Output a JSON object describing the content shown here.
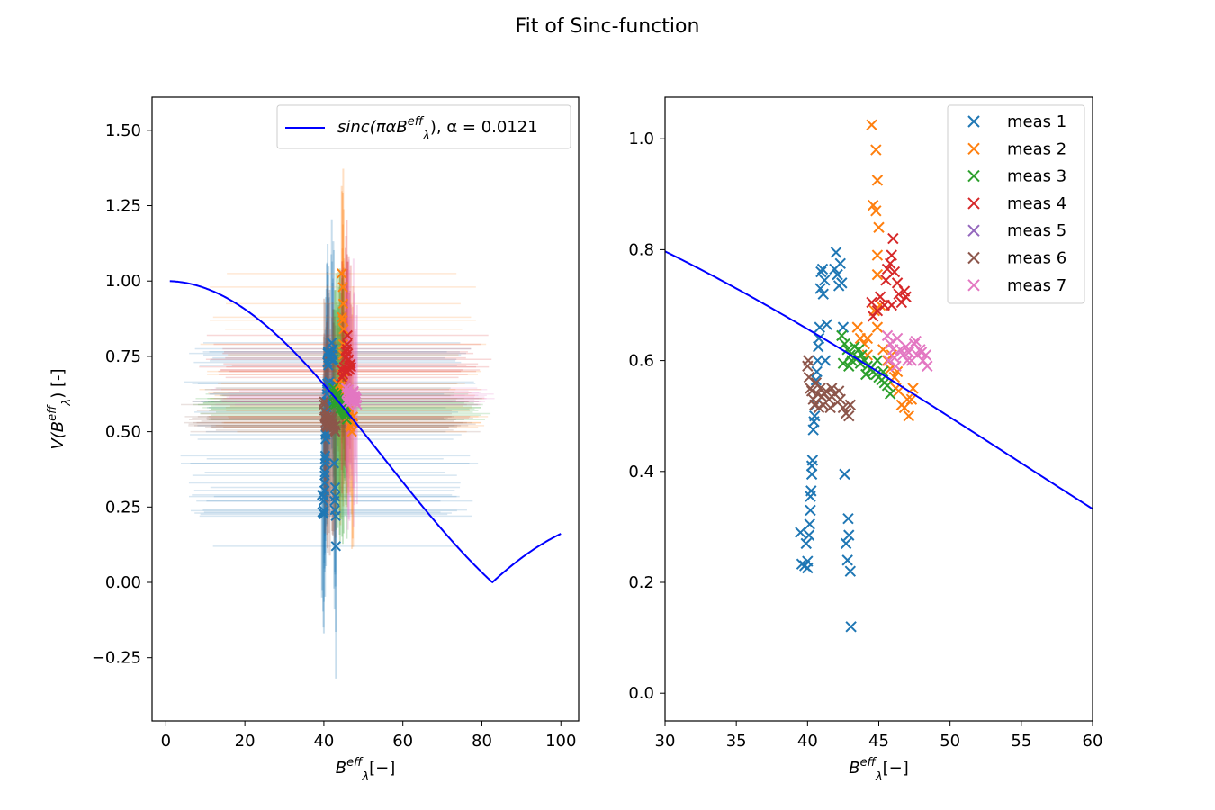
{
  "figure_title": "Fit of Sinc-function",
  "chart_data": [
    {
      "type": "line",
      "panel": "left",
      "xlabel_main": "B",
      "xlabel_sup": "eff",
      "xlabel_sub": "λ",
      "xlabel_tail": "[−]",
      "ylabel_pre": "V(B",
      "ylabel_sup": "eff",
      "ylabel_sub": "λ",
      "ylabel_tail": ") [-]",
      "xlim": [
        -3.5,
        104.5
      ],
      "ylim": [
        -0.46,
        1.61
      ],
      "xticks": [
        "0",
        "20",
        "40",
        "60",
        "80",
        "100"
      ],
      "xtick_values": [
        0,
        20,
        40,
        60,
        80,
        100
      ],
      "yticks": [
        "−0.25",
        "0.00",
        "0.25",
        "0.50",
        "0.75",
        "1.00",
        "1.25",
        "1.50"
      ],
      "ytick_values": [
        -0.25,
        0,
        0.25,
        0.5,
        0.75,
        1.0,
        1.25,
        1.5
      ],
      "legend": {
        "placement": "upper-right",
        "fit_label_main": "sinc(παB",
        "fit_label_sup": "eff",
        "fit_label_sub": "λ",
        "fit_label_tail": "), α = 0.0121"
      },
      "fit": {
        "alpha": 0.0121,
        "x_range": [
          1,
          100
        ],
        "color": "#0000ff",
        "abs": true
      },
      "errorbars": "per-point horizontal (≈±32) and vertical (≈±0.2–0.45) translucent error bars in series colors"
    },
    {
      "type": "scatter",
      "panel": "right",
      "xlabel_main": "B",
      "xlabel_sup": "eff",
      "xlabel_sub": "λ",
      "xlabel_tail": "[−]",
      "xlim": [
        30,
        60
      ],
      "ylim": [
        -0.05,
        1.075
      ],
      "xticks": [
        "30",
        "35",
        "40",
        "45",
        "50",
        "55",
        "60"
      ],
      "xtick_values": [
        30,
        35,
        40,
        45,
        50,
        55,
        60
      ],
      "yticks": [
        "0.0",
        "0.2",
        "0.4",
        "0.6",
        "0.8",
        "1.0"
      ],
      "ytick_values": [
        0,
        0.2,
        0.4,
        0.6,
        0.8,
        1.0
      ],
      "legend": {
        "placement": "upper-right"
      },
      "fit": {
        "alpha": 0.0121,
        "x_range": [
          30,
          60
        ],
        "color": "#0000ff"
      },
      "series": [
        {
          "name": "meas 1",
          "color": "#1f77b4",
          "points": [
            [
              39.5,
              0.29
            ],
            [
              39.6,
              0.233
            ],
            [
              39.8,
              0.23
            ],
            [
              39.9,
              0.27
            ],
            [
              40.0,
              0.238
            ],
            [
              40.0,
              0.226
            ],
            [
              40.1,
              0.285
            ],
            [
              40.15,
              0.305
            ],
            [
              40.2,
              0.33
            ],
            [
              40.2,
              0.355
            ],
            [
              40.25,
              0.365
            ],
            [
              40.3,
              0.395
            ],
            [
              40.3,
              0.41
            ],
            [
              40.35,
              0.42
            ],
            [
              40.4,
              0.475
            ],
            [
              40.45,
              0.49
            ],
            [
              40.5,
              0.5
            ],
            [
              40.55,
              0.52
            ],
            [
              40.6,
              0.565
            ],
            [
              40.65,
              0.58
            ],
            [
              40.7,
              0.6
            ],
            [
              40.75,
              0.625
            ],
            [
              40.8,
              0.64
            ],
            [
              40.85,
              0.66
            ],
            [
              40.9,
              0.73
            ],
            [
              40.95,
              0.76
            ],
            [
              41.05,
              0.765
            ],
            [
              41.1,
              0.72
            ],
            [
              41.2,
              0.745
            ],
            [
              41.25,
              0.6
            ],
            [
              41.35,
              0.665
            ],
            [
              41.9,
              0.765
            ],
            [
              42.0,
              0.795
            ],
            [
              42.1,
              0.755
            ],
            [
              42.2,
              0.735
            ],
            [
              42.3,
              0.775
            ],
            [
              42.4,
              0.74
            ],
            [
              42.5,
              0.66
            ],
            [
              42.6,
              0.395
            ],
            [
              42.7,
              0.27
            ],
            [
              42.8,
              0.24
            ],
            [
              42.85,
              0.315
            ],
            [
              42.9,
              0.285
            ],
            [
              43.0,
              0.22
            ],
            [
              43.05,
              0.12
            ]
          ]
        },
        {
          "name": "meas 2",
          "color": "#ff7f0e",
          "points": [
            [
              44.5,
              1.025
            ],
            [
              44.8,
              0.98
            ],
            [
              44.9,
              0.925
            ],
            [
              44.6,
              0.88
            ],
            [
              44.8,
              0.87
            ],
            [
              45.0,
              0.84
            ],
            [
              44.9,
              0.79
            ],
            [
              44.9,
              0.755
            ],
            [
              45.1,
              0.7
            ],
            [
              44.7,
              0.69
            ],
            [
              44.9,
              0.66
            ],
            [
              43.5,
              0.66
            ],
            [
              43.7,
              0.64
            ],
            [
              44.0,
              0.63
            ],
            [
              44.2,
              0.64
            ],
            [
              45.3,
              0.62
            ],
            [
              45.6,
              0.6
            ],
            [
              45.8,
              0.585
            ],
            [
              46.1,
              0.57
            ],
            [
              46.2,
              0.55
            ],
            [
              46.4,
              0.545
            ],
            [
              46.6,
              0.52
            ],
            [
              46.8,
              0.515
            ],
            [
              47.0,
              0.53
            ],
            [
              47.1,
              0.5
            ],
            [
              47.3,
              0.53
            ],
            [
              47.4,
              0.55
            ],
            [
              45.9,
              0.61
            ],
            [
              46.3,
              0.58
            ],
            [
              44.2,
              0.61
            ]
          ]
        },
        {
          "name": "meas 3",
          "color": "#2ca02c",
          "points": [
            [
              42.4,
              0.645
            ],
            [
              42.6,
              0.63
            ],
            [
              42.8,
              0.62
            ],
            [
              43.0,
              0.61
            ],
            [
              43.1,
              0.6
            ],
            [
              43.3,
              0.625
            ],
            [
              43.5,
              0.605
            ],
            [
              43.7,
              0.595
            ],
            [
              43.8,
              0.61
            ],
            [
              44.0,
              0.6
            ],
            [
              44.2,
              0.59
            ],
            [
              44.4,
              0.585
            ],
            [
              44.6,
              0.58
            ],
            [
              44.8,
              0.575
            ],
            [
              45.0,
              0.57
            ],
            [
              45.2,
              0.565
            ],
            [
              45.4,
              0.56
            ],
            [
              45.6,
              0.555
            ],
            [
              45.8,
              0.54
            ],
            [
              42.5,
              0.595
            ],
            [
              42.9,
              0.59
            ],
            [
              43.6,
              0.62
            ],
            [
              44.1,
              0.575
            ],
            [
              44.9,
              0.6
            ],
            [
              45.3,
              0.58
            ]
          ]
        },
        {
          "name": "meas 4",
          "color": "#d62728",
          "points": [
            [
              44.5,
              0.705
            ],
            [
              44.9,
              0.69
            ],
            [
              45.1,
              0.715
            ],
            [
              45.4,
              0.7
            ],
            [
              45.5,
              0.745
            ],
            [
              45.6,
              0.765
            ],
            [
              45.8,
              0.775
            ],
            [
              45.9,
              0.79
            ],
            [
              46.0,
              0.82
            ],
            [
              46.1,
              0.76
            ],
            [
              46.3,
              0.74
            ],
            [
              46.4,
              0.72
            ],
            [
              46.6,
              0.705
            ],
            [
              46.8,
              0.725
            ],
            [
              46.9,
              0.715
            ],
            [
              44.6,
              0.68
            ],
            [
              45.9,
              0.7
            ]
          ]
        },
        {
          "name": "meas 5",
          "color": "#9467bd",
          "points": []
        },
        {
          "name": "meas 6",
          "color": "#8c564b",
          "points": [
            [
              40.0,
              0.59
            ],
            [
              40.1,
              0.57
            ],
            [
              40.2,
              0.55
            ],
            [
              40.3,
              0.545
            ],
            [
              40.4,
              0.53
            ],
            [
              40.5,
              0.52
            ],
            [
              40.6,
              0.56
            ],
            [
              40.7,
              0.54
            ],
            [
              40.8,
              0.515
            ],
            [
              40.9,
              0.55
            ],
            [
              41.0,
              0.535
            ],
            [
              41.1,
              0.52
            ],
            [
              41.2,
              0.54
            ],
            [
              41.3,
              0.545
            ],
            [
              41.5,
              0.53
            ],
            [
              41.7,
              0.55
            ],
            [
              41.9,
              0.54
            ],
            [
              42.1,
              0.525
            ],
            [
              42.3,
              0.53
            ],
            [
              42.5,
              0.515
            ],
            [
              42.7,
              0.505
            ],
            [
              42.9,
              0.5
            ],
            [
              43.0,
              0.52
            ],
            [
              40.05,
              0.6
            ],
            [
              41.6,
              0.515
            ],
            [
              42.2,
              0.545
            ]
          ]
        },
        {
          "name": "meas 7",
          "color": "#e377c2",
          "points": [
            [
              45.6,
              0.645
            ],
            [
              45.8,
              0.63
            ],
            [
              46.0,
              0.62
            ],
            [
              46.1,
              0.605
            ],
            [
              46.3,
              0.64
            ],
            [
              46.5,
              0.62
            ],
            [
              46.7,
              0.61
            ],
            [
              46.9,
              0.625
            ],
            [
              47.1,
              0.615
            ],
            [
              47.3,
              0.6
            ],
            [
              47.5,
              0.63
            ],
            [
              47.7,
              0.61
            ],
            [
              47.9,
              0.62
            ],
            [
              48.1,
              0.6
            ],
            [
              48.3,
              0.61
            ],
            [
              48.4,
              0.59
            ],
            [
              45.7,
              0.6
            ],
            [
              46.2,
              0.59
            ],
            [
              47.0,
              0.6
            ],
            [
              47.6,
              0.635
            ],
            [
              48.0,
              0.615
            ]
          ]
        }
      ]
    }
  ]
}
